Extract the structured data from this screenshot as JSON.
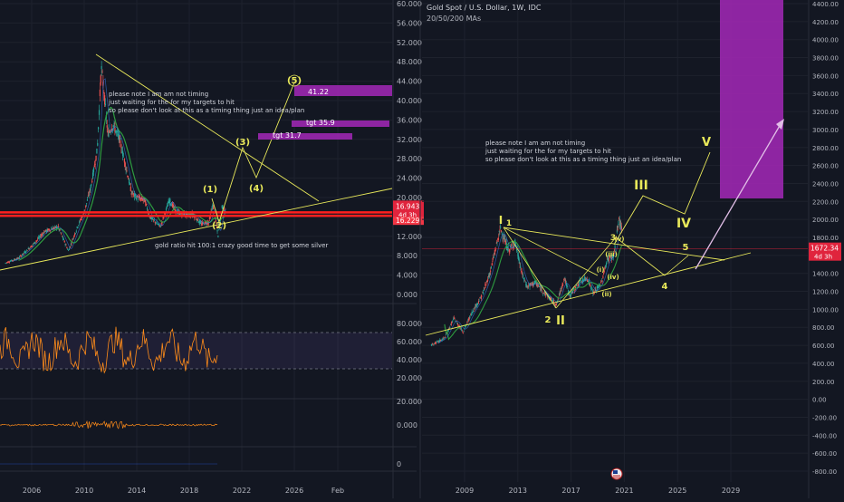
{
  "header": {
    "title": "Gold Spot / U.S. Dollar, 1W, IDC",
    "subtitle": "20/50/200 MAs"
  },
  "colors": {
    "background": "#131722",
    "grid": "#1e222d",
    "candle_up": "#26a69a",
    "candle_down": "#ef5350",
    "drawing": "#e8e85a",
    "target_box": "#9c27b0",
    "price_line": "#ff1f1f",
    "oscillator": "#ff8c1a",
    "arrow": "#e1bee7"
  },
  "chart_data": [
    {
      "type": "line",
      "name": "left-silver-chart",
      "ylim": [
        0,
        60
      ],
      "y_ticks": [
        "60.000",
        "56.000",
        "52.000",
        "48.000",
        "44.000",
        "40.000",
        "36.000",
        "32.000",
        "28.000",
        "24.000",
        "20.000",
        "16.000",
        "12.000",
        "8.000",
        "4.000",
        "0.000"
      ],
      "x_ticks": [
        "2006",
        "2010",
        "2014",
        "2018",
        "2022",
        "2026",
        "Feb"
      ],
      "series": [
        {
          "values": [
            [
              2004,
              6.5
            ],
            [
              2005,
              7.5
            ],
            [
              2006,
              10
            ],
            [
              2007,
              13
            ],
            [
              2008,
              14
            ],
            [
              2008.8,
              9
            ],
            [
              2009.5,
              14
            ],
            [
              2010,
              17
            ],
            [
              2010.5,
              22
            ],
            [
              2011.0,
              30
            ],
            [
              2011.3,
              47
            ],
            [
              2011.5,
              42
            ],
            [
              2011.8,
              33
            ],
            [
              2012.2,
              35
            ],
            [
              2012.7,
              32
            ],
            [
              2013.2,
              26
            ],
            [
              2013.6,
              21
            ],
            [
              2014,
              20
            ],
            [
              2014.6,
              19.5
            ],
            [
              2015,
              16
            ],
            [
              2015.8,
              14
            ],
            [
              2016.5,
              19.5
            ],
            [
              2017,
              17
            ],
            [
              2017.6,
              16.5
            ],
            [
              2018.3,
              16.5
            ],
            [
              2018.9,
              14.5
            ],
            [
              2019.5,
              15
            ],
            [
              2019.8,
              18.5
            ],
            [
              2020.2,
              12
            ],
            [
              2020.5,
              18
            ],
            [
              2020.8,
              17
            ]
          ]
        }
      ],
      "price_labels": [
        "16.943",
        "4d 3h",
        "16.229"
      ],
      "targets": [
        {
          "label": "41.22"
        },
        {
          "label": "tgt 35.9"
        },
        {
          "label": "tgt 31.7"
        }
      ],
      "wave_labels": [
        "(1)",
        "(2)",
        "(3)",
        "(4)",
        "(5)"
      ],
      "annotations": [
        "please note I am am not timing",
        "just waiting for the for my targets to hit",
        "so please don't look at this as a timing thing just an idea/plan",
        "gold ratio hit 100:1 crazy good time to get some silver"
      ]
    },
    {
      "type": "line",
      "name": "left-oscillator-1",
      "y_ticks": [
        "80.000",
        "60.000",
        "40.000",
        "20.000"
      ],
      "band": [
        30,
        70
      ]
    },
    {
      "type": "line",
      "name": "left-oscillator-2",
      "y_ticks": [
        "20.000",
        "0.000"
      ]
    },
    {
      "type": "line",
      "name": "left-oscillator-3",
      "y_ticks": [
        "0"
      ]
    },
    {
      "type": "line",
      "name": "right-gold-chart",
      "title": "Gold Spot / U.S. Dollar, 1W, IDC",
      "subtitle": "20/50/200 MAs",
      "ylim": [
        -800,
        4400
      ],
      "y_ticks": [
        "4400.00",
        "4200.00",
        "4000.00",
        "3800.00",
        "3600.00",
        "3400.00",
        "3200.00",
        "3000.00",
        "2800.00",
        "2600.00",
        "2400.00",
        "2200.00",
        "2000.00",
        "1800.00",
        "1600.00",
        "1400.00",
        "1200.00",
        "1000.00",
        "800.00",
        "600.00",
        "400.00",
        "200.00",
        "0.00",
        "-200.00",
        "-400.00",
        "-600.00",
        "-800.00"
      ],
      "x_ticks": [
        "2009",
        "2013",
        "2017",
        "2021",
        "2025",
        "2029"
      ],
      "series": [
        {
          "values": [
            [
              2006.5,
              600
            ],
            [
              2007.5,
              680
            ],
            [
              2008.2,
              900
            ],
            [
              2008.9,
              750
            ],
            [
              2009.5,
              950
            ],
            [
              2010.3,
              1150
            ],
            [
              2010.9,
              1400
            ],
            [
              2011.7,
              1900
            ],
            [
              2012.3,
              1650
            ],
            [
              2012.8,
              1750
            ],
            [
              2013.3,
              1400
            ],
            [
              2013.7,
              1250
            ],
            [
              2014.3,
              1300
            ],
            [
              2014.9,
              1200
            ],
            [
              2015.9,
              1050
            ],
            [
              2016.5,
              1350
            ],
            [
              2016.9,
              1150
            ],
            [
              2017.6,
              1300
            ],
            [
              2018.2,
              1350
            ],
            [
              2018.7,
              1180
            ],
            [
              2019.3,
              1300
            ],
            [
              2019.7,
              1550
            ],
            [
              2020.2,
              1600
            ],
            [
              2020.6,
              2000
            ],
            [
              2020.8,
              1900
            ]
          ]
        }
      ],
      "price_labels": [
        "1672.34",
        "4d 3h"
      ],
      "wave_labels": [
        "I",
        "1",
        "2",
        "II",
        "3",
        "(i)",
        "(ii)",
        "(iii)",
        "(iv)",
        "(v)",
        "III",
        "IV",
        "4",
        "5",
        "V"
      ],
      "annotations": [
        "please note I am am not timing",
        "just waiting for the for my targets to hit",
        "so please don't look at this as a timing thing just an idea/plan"
      ]
    }
  ]
}
